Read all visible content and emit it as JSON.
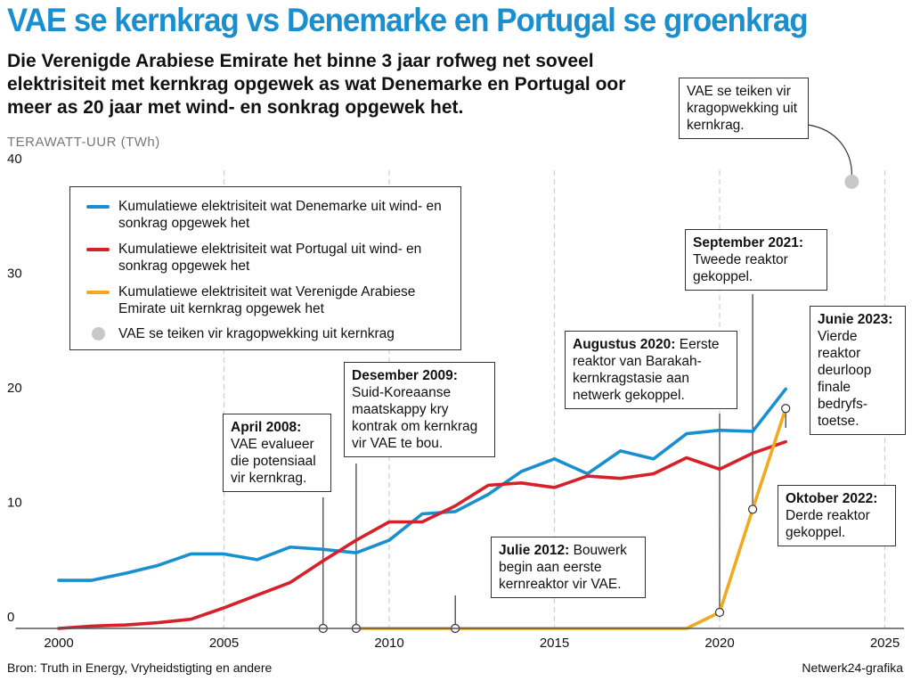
{
  "header": {
    "title": "VAE se kernkrag vs Denemarke en Portugal se groenkrag",
    "subtitle": "Die Verenigde Arabiese Emirate het binne 3 jaar rofweg net soveel elektrisiteit met kernkrag opgewek as wat Denemarke en Portugal oor meer as 20 jaar met wind- en sonkrag opgewek het.",
    "unit_label": "TERAWATT-UUR (TWh)"
  },
  "footer": {
    "source": "Bron: Truth in Energy, Vryheidstigting en andere",
    "credit": "Netwerk24-grafika"
  },
  "legend": {
    "denmark": "Kumulatiewe elektrisiteit wat Denemarke uit wind- en sonkrag opgewek het",
    "portugal": "Kumulatiewe elektrisiteit wat Portugal uit wind- en sonkrag opgewek het",
    "uae": "Kumulatiewe elektrisiteit wat Verenigde Arabiese Emirate uit kernkrag opgewek het",
    "target": "VAE se teiken vir kragopwekking uit kernkrag"
  },
  "annotations": {
    "target": {
      "text": "VAE se teiken vir kragopwekking uit kernkrag."
    },
    "apr2008": {
      "title": "April 2008:",
      "text": "VAE evalueer die potensiaal vir kernkrag."
    },
    "dec2009": {
      "title": "Desember 2009:",
      "text": "Suid-Koreaanse maatskappy kry kontrak om kernkrag vir VAE te bou."
    },
    "jul2012": {
      "title": "Julie 2012:",
      "text": "Bouwerk begin aan eerste kernreaktor vir VAE."
    },
    "aug2020": {
      "title": "Augustus 2020:",
      "text": "Eerste reaktor van Barakah-kernkragstasie aan netwerk gekoppel."
    },
    "sep2021": {
      "title": "September 2021:",
      "text": "Tweede reaktor gekoppel."
    },
    "jun2023": {
      "title": "Junie 2023:",
      "text": "Vierde reaktor deurloop finale bedryfs-toetse."
    },
    "oct2022": {
      "title": "Oktober 2022:",
      "text": "Derde reaktor gekoppel."
    }
  },
  "colors": {
    "denmark": "#1a8fd0",
    "portugal": "#d6202a",
    "uae": "#f2a91f",
    "target": "#c8c8cc",
    "title": "#1a8fd0"
  },
  "chart_data": {
    "type": "line",
    "title": "VAE se kernkrag vs Denemarke en Portugal se groenkrag",
    "ylabel": "TERAWATT-UUR (TWh)",
    "xlim": [
      1999.5,
      2025.5
    ],
    "ylim": [
      0,
      40
    ],
    "x_ticks": [
      2000,
      2005,
      2010,
      2015,
      2020,
      2025
    ],
    "y_ticks": [
      0,
      10,
      20,
      30,
      40
    ],
    "grid": "vertical dashed",
    "series": [
      {
        "name": "Kumulatiewe elektrisiteit wat Denemarke uit wind- en sonkrag opgewek het",
        "color": "#1a8fd0",
        "points": [
          [
            2000,
            4.2
          ],
          [
            2001,
            4.2
          ],
          [
            2002,
            4.8
          ],
          [
            2003,
            5.5
          ],
          [
            2004,
            6.5
          ],
          [
            2005,
            6.5
          ],
          [
            2006,
            6.0
          ],
          [
            2007,
            7.1
          ],
          [
            2008,
            6.9
          ],
          [
            2009,
            6.6
          ],
          [
            2010,
            7.7
          ],
          [
            2011,
            10.0
          ],
          [
            2012,
            10.2
          ],
          [
            2013,
            11.7
          ],
          [
            2014,
            13.7
          ],
          [
            2015,
            14.8
          ],
          [
            2016,
            13.5
          ],
          [
            2017,
            15.5
          ],
          [
            2018,
            14.8
          ],
          [
            2019,
            17.0
          ],
          [
            2020,
            17.3
          ],
          [
            2021,
            17.2
          ],
          [
            2022,
            20.9
          ]
        ]
      },
      {
        "name": "Kumulatiewe elektrisiteit wat Portugal uit wind- en sonkrag opgewek het",
        "color": "#d6202a",
        "points": [
          [
            2000,
            0.0
          ],
          [
            2001,
            0.2
          ],
          [
            2002,
            0.3
          ],
          [
            2003,
            0.5
          ],
          [
            2004,
            0.8
          ],
          [
            2005,
            1.8
          ],
          [
            2006,
            2.9
          ],
          [
            2007,
            4.0
          ],
          [
            2008,
            5.9
          ],
          [
            2009,
            7.7
          ],
          [
            2010,
            9.3
          ],
          [
            2011,
            9.3
          ],
          [
            2012,
            10.7
          ],
          [
            2013,
            12.5
          ],
          [
            2014,
            12.7
          ],
          [
            2015,
            12.3
          ],
          [
            2016,
            13.3
          ],
          [
            2017,
            13.1
          ],
          [
            2018,
            13.5
          ],
          [
            2019,
            14.9
          ],
          [
            2020,
            13.9
          ],
          [
            2021,
            15.3
          ],
          [
            2022,
            16.3
          ]
        ]
      },
      {
        "name": "Kumulatiewe elektrisiteit wat Verenigde Arabiese Emirate uit kernkrag opgewek het",
        "color": "#f2a91f",
        "points": [
          [
            2009,
            0.0
          ],
          [
            2019,
            0.0
          ],
          [
            2020,
            1.4
          ],
          [
            2021,
            10.4
          ],
          [
            2022,
            19.2
          ]
        ]
      }
    ],
    "target_point": {
      "name": "VAE se teiken vir kragopwekking uit kernkrag",
      "x": 2024.0,
      "y": 39.0
    },
    "events": [
      {
        "label": "April 2008",
        "x": 2008.0,
        "y": 0
      },
      {
        "label": "Desember 2009",
        "x": 2009.0,
        "y": 0
      },
      {
        "label": "Julie 2012",
        "x": 2012.0,
        "y": 0
      },
      {
        "label": "Augustus 2020",
        "x": 2020.0,
        "y": 1.4
      },
      {
        "label": "September 2021",
        "x": 2021.0,
        "y": 10.4
      },
      {
        "label": "Junie 2023",
        "x": 2022.0,
        "y": 19.2
      },
      {
        "label": "Oktober 2022",
        "x": 2022.0,
        "y": 19.2
      }
    ]
  }
}
